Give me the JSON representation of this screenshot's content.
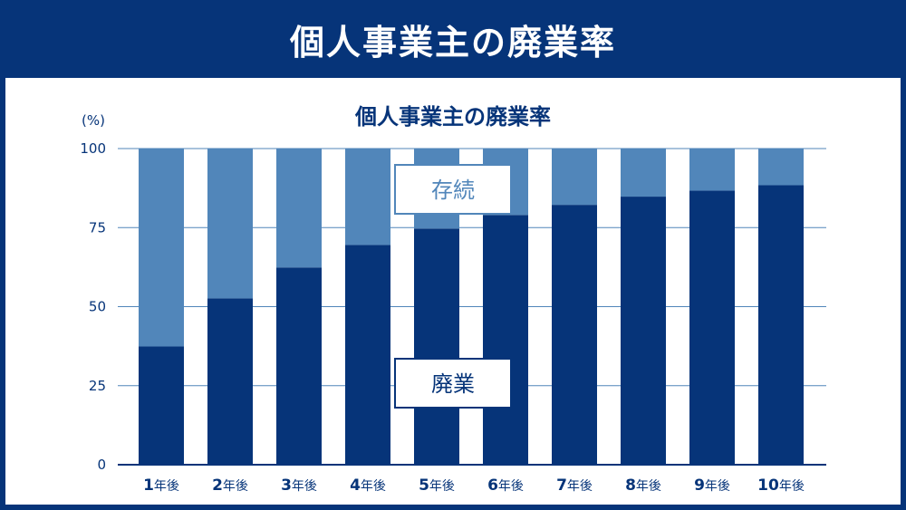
{
  "header": {
    "title": "個人事業主の廃業率"
  },
  "chart_data": {
    "type": "bar",
    "stacked": true,
    "title": "個人事業主の廃業率",
    "ylabel": "(%)",
    "ylim": [
      0,
      100
    ],
    "yticks": [
      "0",
      "25",
      "50",
      "75",
      "100"
    ],
    "categories": [
      {
        "num": "1",
        "suffix": "年後"
      },
      {
        "num": "2",
        "suffix": "年後"
      },
      {
        "num": "3",
        "suffix": "年後"
      },
      {
        "num": "4",
        "suffix": "年後"
      },
      {
        "num": "5",
        "suffix": "年後"
      },
      {
        "num": "6",
        "suffix": "年後"
      },
      {
        "num": "7",
        "suffix": "年後"
      },
      {
        "num": "8",
        "suffix": "年後"
      },
      {
        "num": "9",
        "suffix": "年後"
      },
      {
        "num": "10",
        "suffix": "年後"
      }
    ],
    "series": [
      {
        "name": "廃業",
        "color": "#063479",
        "values": [
          37.4,
          52.6,
          62.4,
          69.5,
          74.7,
          79,
          82.2,
          84.8,
          86.7,
          88.4
        ]
      },
      {
        "name": "存続",
        "color": "#5186ba",
        "values": [
          62.6,
          47.4,
          37.6,
          30.5,
          25.3,
          21,
          17.8,
          15.2,
          13.3,
          11.6
        ]
      }
    ],
    "grid": true,
    "legend": "inline"
  }
}
